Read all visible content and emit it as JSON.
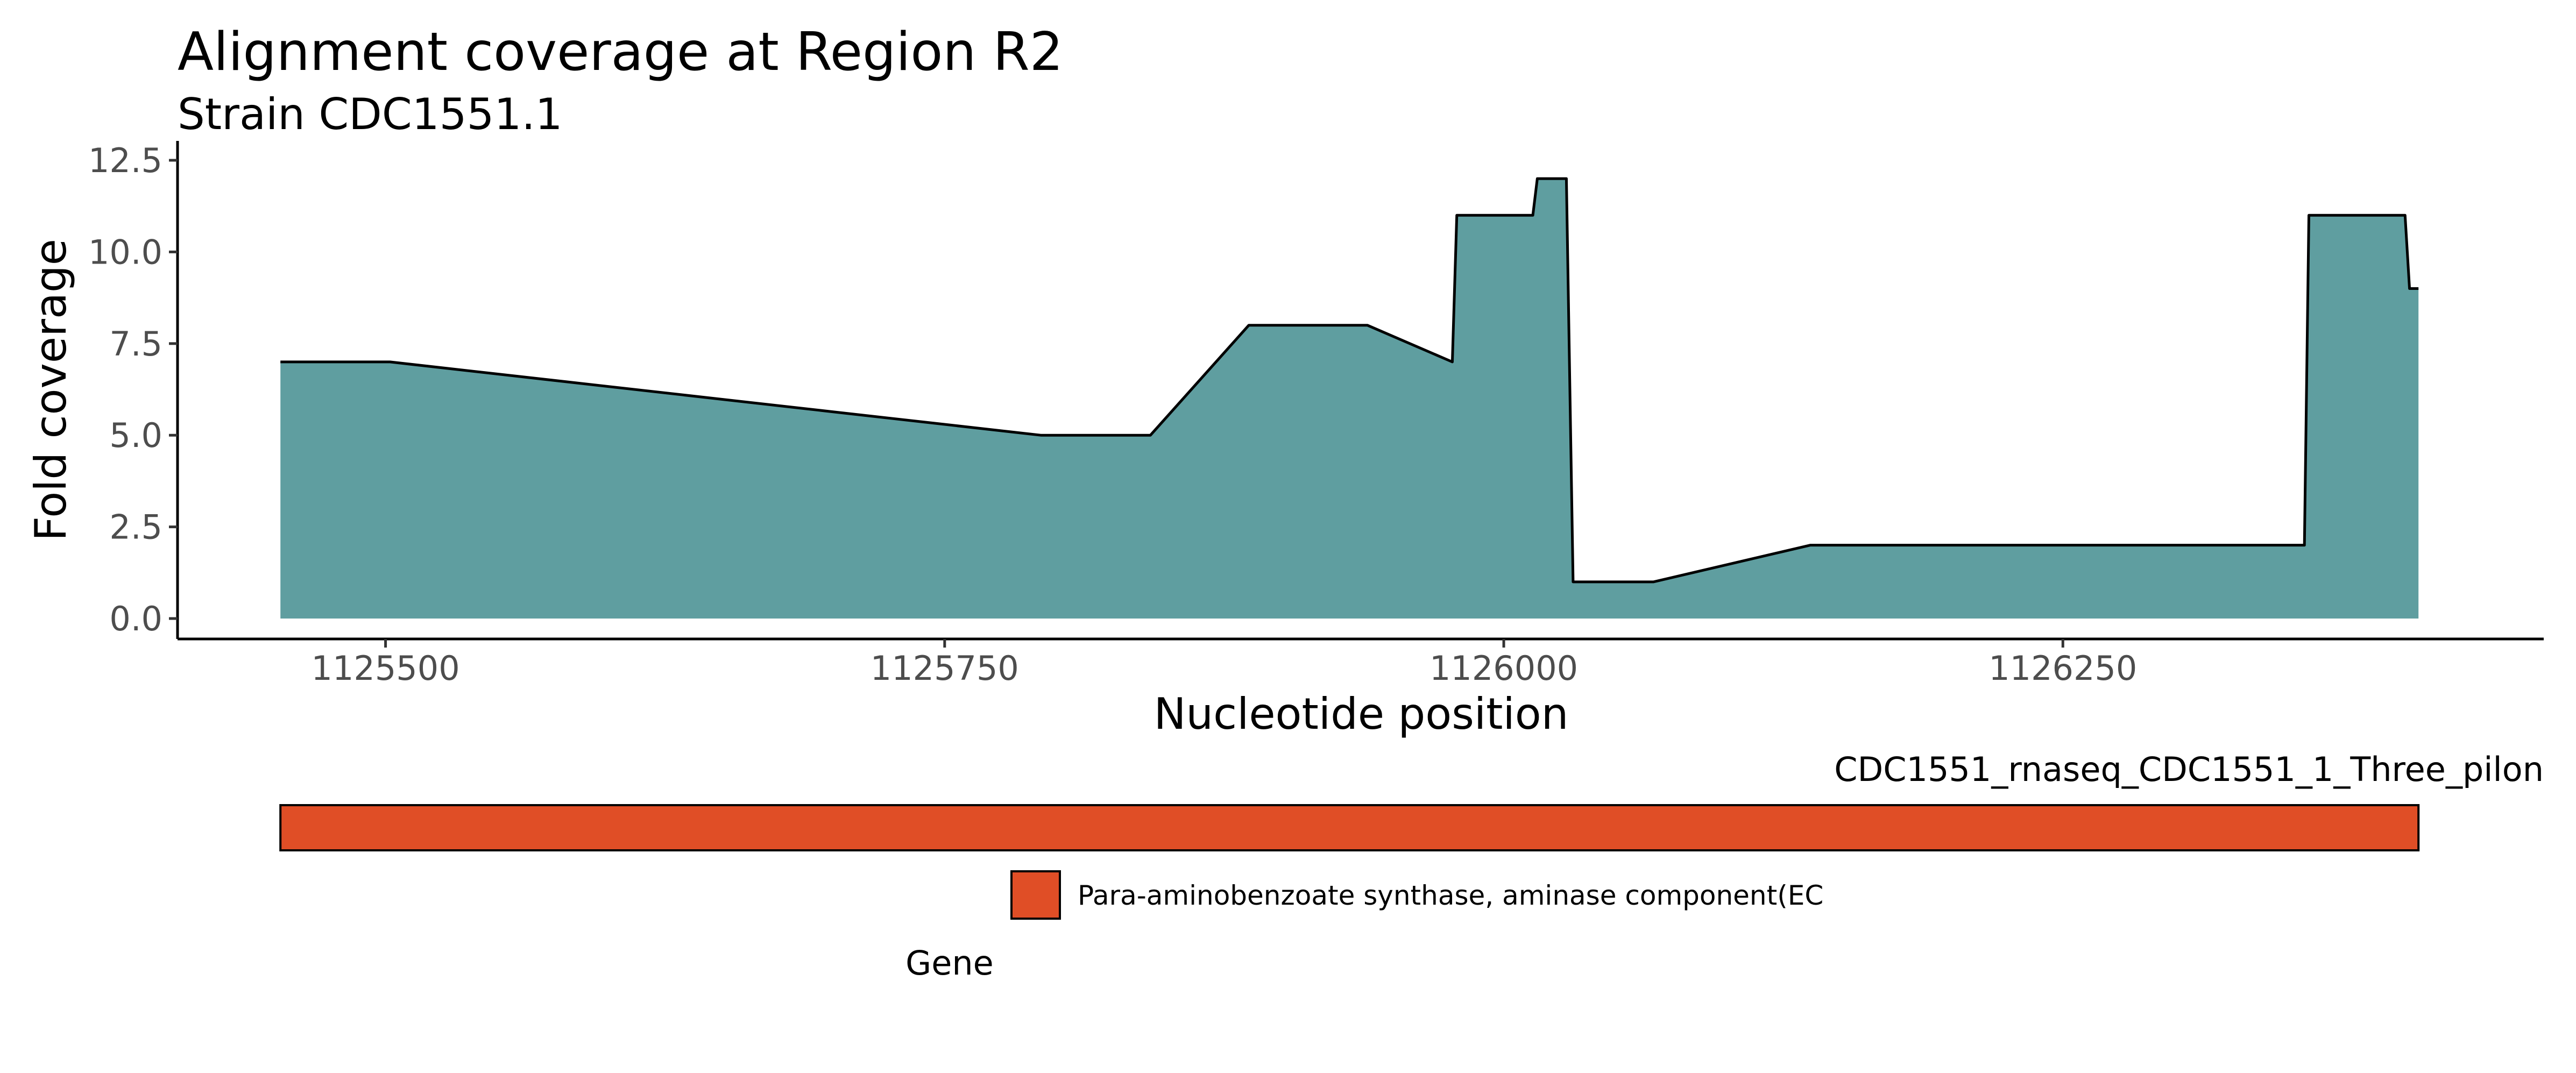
{
  "chart_data": [
    {
      "type": "area",
      "title": "Alignment coverage at Region R2",
      "subtitle": "Strain CDC1551.1",
      "xlabel": "Nucleotide position",
      "ylabel": "Fold coverage",
      "xlim": [
        1125407,
        1126465
      ],
      "ylim": [
        0,
        12.5
      ],
      "x_ticks": [
        1125500,
        1125750,
        1126000,
        1126250
      ],
      "x_tick_labels": [
        "1125500",
        "1125750",
        "1126000",
        "1126250"
      ],
      "y_ticks": [
        0,
        2.5,
        5,
        7.5,
        10,
        12.5
      ],
      "y_tick_labels": [
        "0.0",
        "2.5",
        "5.0",
        "7.5",
        "10.0",
        "12.5"
      ],
      "fill_color": "#5f9ea0",
      "line_color": "#000000",
      "grid": false,
      "series": [
        {
          "x": [
            1125453,
            1125502,
            1125793,
            1125842,
            1125886,
            1125939,
            1125977,
            1125979,
            1126013,
            1126015,
            1126028,
            1126031,
            1126067,
            1126137,
            1126358,
            1126360,
            1126403,
            1126405,
            1126409
          ],
          "y": [
            7,
            7,
            5,
            5,
            8,
            8,
            7,
            11,
            11,
            12,
            12,
            1,
            1,
            2,
            2,
            11,
            11,
            9,
            9
          ]
        }
      ]
    },
    {
      "type": "gene-track",
      "track_label": "CDC1551_rnaseq_CDC1551_1_Three_pilon",
      "genes": [
        {
          "name": "Para-aminobenzoate synthase, aminase component(EC",
          "start": 1125453,
          "end": 1126409,
          "color": "#e04e26"
        }
      ],
      "legend_title": "Gene",
      "legend_placement": "bottom"
    }
  ]
}
